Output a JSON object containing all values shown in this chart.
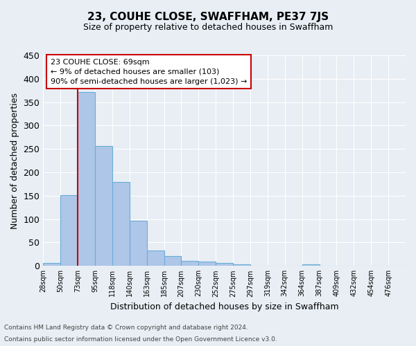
{
  "title": "23, COUHE CLOSE, SWAFFHAM, PE37 7JS",
  "subtitle": "Size of property relative to detached houses in Swaffham",
  "xlabel": "Distribution of detached houses by size in Swaffham",
  "ylabel": "Number of detached properties",
  "footer_line1": "Contains HM Land Registry data © Crown copyright and database right 2024.",
  "footer_line2": "Contains public sector information licensed under the Open Government Licence v3.0.",
  "bin_labels": [
    "28sqm",
    "50sqm",
    "73sqm",
    "95sqm",
    "118sqm",
    "140sqm",
    "163sqm",
    "185sqm",
    "207sqm",
    "230sqm",
    "252sqm",
    "275sqm",
    "297sqm",
    "319sqm",
    "342sqm",
    "364sqm",
    "387sqm",
    "409sqm",
    "432sqm",
    "454sqm",
    "476sqm"
  ],
  "bar_values": [
    7,
    152,
    372,
    257,
    179,
    97,
    33,
    21,
    11,
    9,
    6,
    3,
    0,
    0,
    0,
    3,
    0,
    0,
    0,
    0,
    0
  ],
  "bar_color": "#aec6e8",
  "bar_edge_color": "#6aaed6",
  "bar_edge_width": 0.8,
  "property_line_color": "#cc0000",
  "property_line_bin_index": 2,
  "ylim": [
    0,
    450
  ],
  "yticks": [
    0,
    50,
    100,
    150,
    200,
    250,
    300,
    350,
    400,
    450
  ],
  "annotation_title": "23 COUHE CLOSE: 69sqm",
  "annotation_line1": "← 9% of detached houses are smaller (103)",
  "annotation_line2": "90% of semi-detached houses are larger (1,023) →",
  "annotation_box_color": "#ffffff",
  "annotation_box_edge": "#cc0000",
  "bg_color": "#e8eef4",
  "plot_bg_color": "#e8eef4",
  "grid_color": "#ffffff",
  "title_fontsize": 11,
  "subtitle_fontsize": 9,
  "ylabel_fontsize": 9,
  "xlabel_fontsize": 9,
  "ytick_fontsize": 9,
  "xtick_fontsize": 7,
  "annotation_fontsize": 8,
  "footer_fontsize": 6.5
}
